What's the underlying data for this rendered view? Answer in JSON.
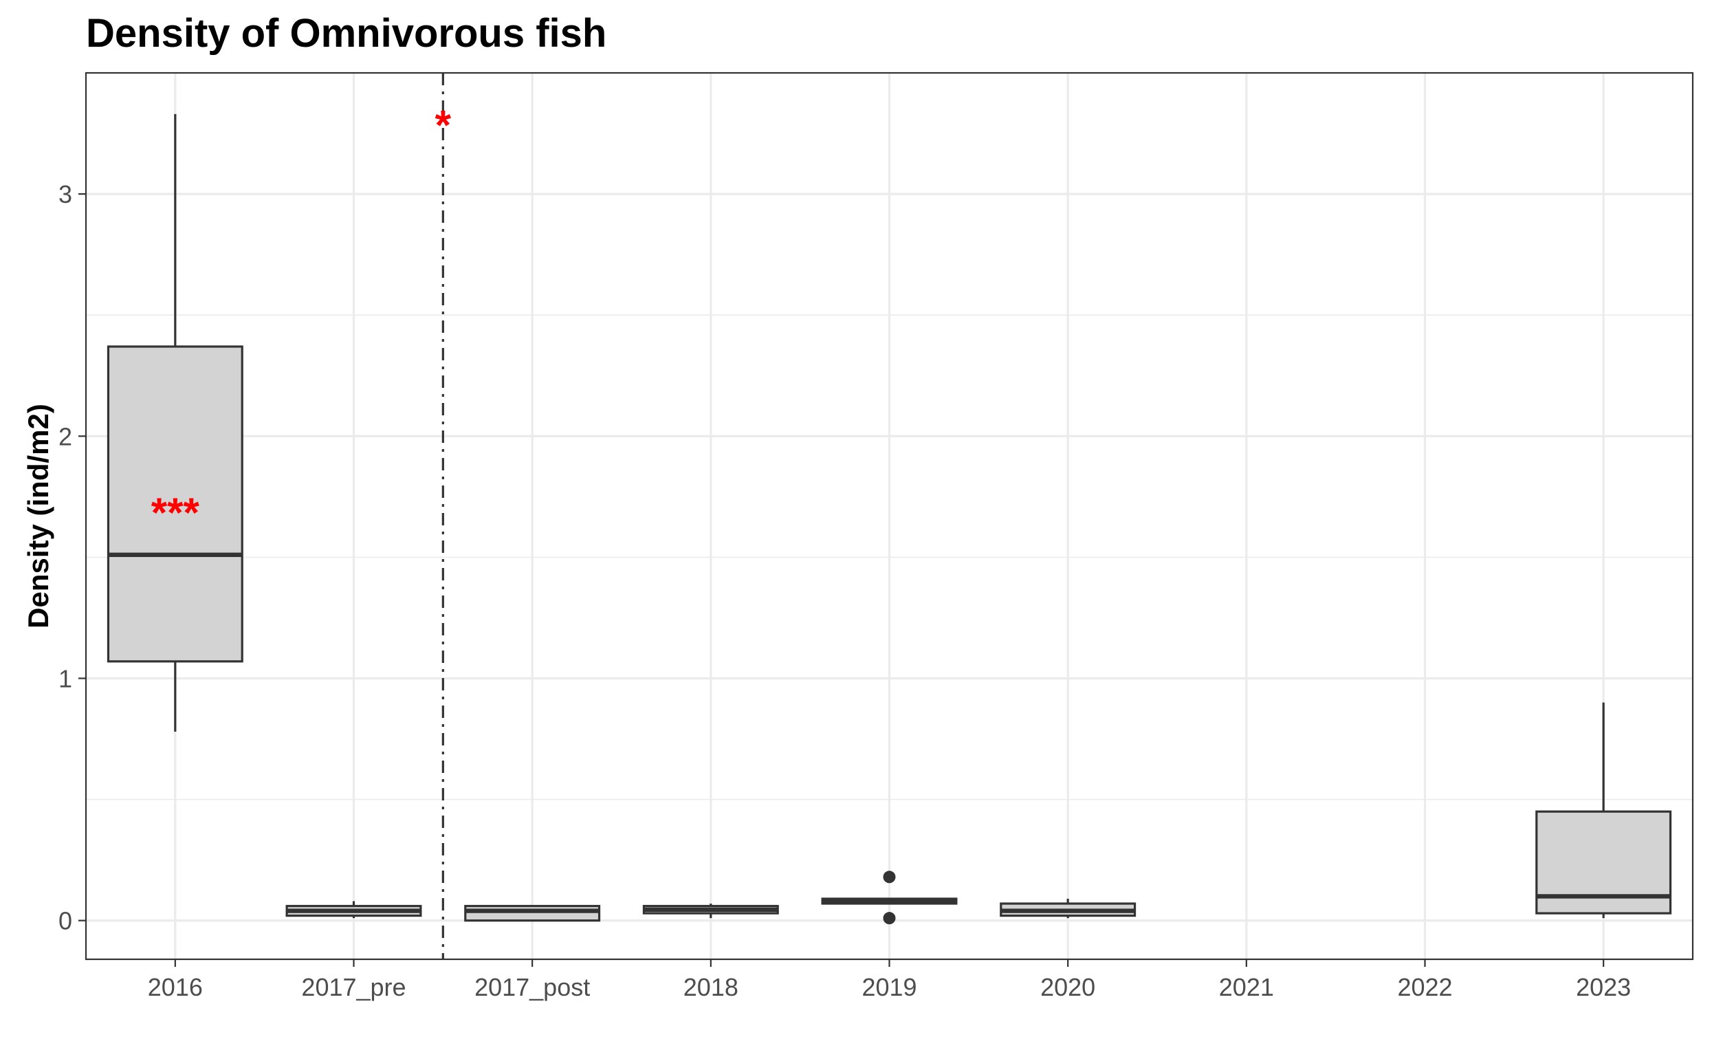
{
  "chart_data": {
    "type": "boxplot",
    "title": "Density of Omnivorous fish",
    "xlabel": "",
    "ylabel": "Density (ind/m2)",
    "categories": [
      "2016",
      "2017_pre",
      "2017_post",
      "2018",
      "2019",
      "2020",
      "2021",
      "2022",
      "2023"
    ],
    "ylim": [
      -0.16,
      3.5
    ],
    "yticks": [
      0,
      1,
      2,
      3
    ],
    "grid": true,
    "box_fill": "#d3d3d3",
    "box_stroke": "#333333",
    "grid_color": "#ebebeb",
    "annotation_color": "#ff0000",
    "boxes": [
      {
        "category": "2016",
        "whisker_low": 0.78,
        "q1": 1.07,
        "median": 1.51,
        "q3": 2.37,
        "whisker_high": 3.33,
        "outliers": []
      },
      {
        "category": "2017_pre",
        "whisker_low": 0.01,
        "q1": 0.02,
        "median": 0.04,
        "q3": 0.06,
        "whisker_high": 0.08,
        "outliers": []
      },
      {
        "category": "2017_post",
        "whisker_low": 0.0,
        "q1": 0.0,
        "median": 0.04,
        "q3": 0.06,
        "whisker_high": 0.06,
        "outliers": []
      },
      {
        "category": "2018",
        "whisker_low": 0.01,
        "q1": 0.03,
        "median": 0.045,
        "q3": 0.06,
        "whisker_high": 0.07,
        "outliers": []
      },
      {
        "category": "2019",
        "whisker_low": 0.07,
        "q1": 0.07,
        "median": 0.08,
        "q3": 0.09,
        "whisker_high": 0.09,
        "outliers": [
          0.18,
          0.01
        ]
      },
      {
        "category": "2020",
        "whisker_low": 0.01,
        "q1": 0.02,
        "median": 0.04,
        "q3": 0.07,
        "whisker_high": 0.09,
        "outliers": []
      },
      {
        "category": "2023",
        "whisker_low": 0.01,
        "q1": 0.03,
        "median": 0.1,
        "q3": 0.45,
        "whisker_high": 0.9,
        "outliers": []
      }
    ],
    "vline": {
      "between": [
        "2017_pre",
        "2017_post"
      ],
      "style": "dashdot",
      "color": "#333333"
    },
    "annotations": [
      {
        "text": "***",
        "category": "2016",
        "y": 1.7
      },
      {
        "text": "*",
        "between": [
          "2017_pre",
          "2017_post"
        ],
        "y": 3.3
      }
    ]
  }
}
